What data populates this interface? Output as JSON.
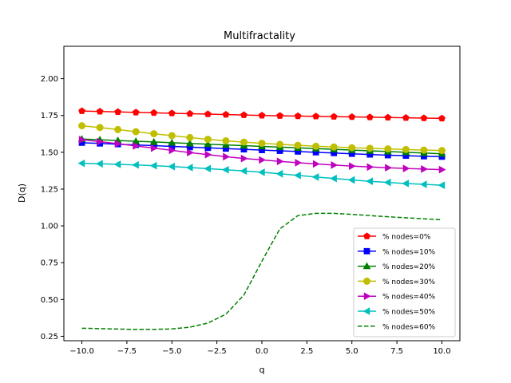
{
  "chart_data": {
    "type": "line",
    "title": "Multifractality",
    "xlabel": "q",
    "ylabel": "D(q)",
    "xlim": [
      -11,
      11
    ],
    "ylim": [
      0.22,
      2.22
    ],
    "x_ticks": [
      -10.0,
      -7.5,
      -5.0,
      -2.5,
      0.0,
      2.5,
      5.0,
      7.5,
      10.0
    ],
    "x_tick_labels": [
      "−10.0",
      "−7.5",
      "−5.0",
      "−2.5",
      "0.0",
      "2.5",
      "5.0",
      "7.5",
      "10.0"
    ],
    "y_ticks": [
      0.25,
      0.5,
      0.75,
      1.0,
      1.25,
      1.5,
      1.75,
      2.0
    ],
    "y_tick_labels": [
      "0.25",
      "0.50",
      "0.75",
      "1.00",
      "1.25",
      "1.50",
      "1.75",
      "2.00"
    ],
    "grid": false,
    "legend_position": "lower-right",
    "x": [
      -10,
      -9,
      -8,
      -7,
      -6,
      -5,
      -4,
      -3,
      -2,
      -1,
      0,
      1,
      2,
      3,
      4,
      5,
      6,
      7,
      8,
      9,
      10
    ],
    "series": [
      {
        "name": "% nodes=0%",
        "color": "#ff0000",
        "marker": "pentagon",
        "linestyle": "solid",
        "values": [
          1.78,
          1.777,
          1.774,
          1.771,
          1.768,
          1.765,
          1.762,
          1.759,
          1.756,
          1.753,
          1.75,
          1.748,
          1.746,
          1.744,
          1.742,
          1.74,
          1.738,
          1.736,
          1.734,
          1.732,
          1.73
        ]
      },
      {
        "name": "% nodes=10%",
        "color": "#0000ff",
        "marker": "square",
        "linestyle": "solid",
        "values": [
          1.565,
          1.56,
          1.555,
          1.55,
          1.545,
          1.54,
          1.535,
          1.53,
          1.525,
          1.52,
          1.515,
          1.51,
          1.505,
          1.5,
          1.495,
          1.49,
          1.485,
          1.48,
          1.477,
          1.473,
          1.47
        ]
      },
      {
        "name": "% nodes=20%",
        "color": "#008000",
        "marker": "triangle-up",
        "linestyle": "solid",
        "values": [
          1.59,
          1.585,
          1.58,
          1.575,
          1.57,
          1.565,
          1.56,
          1.555,
          1.55,
          1.545,
          1.54,
          1.535,
          1.53,
          1.525,
          1.52,
          1.515,
          1.51,
          1.505,
          1.5,
          1.495,
          1.49
        ]
      },
      {
        "name": "% nodes=30%",
        "color": "#bfbf00",
        "marker": "circle",
        "linestyle": "solid",
        "values": [
          1.68,
          1.668,
          1.654,
          1.64,
          1.626,
          1.613,
          1.6,
          1.588,
          1.578,
          1.569,
          1.561,
          1.554,
          1.547,
          1.541,
          1.536,
          1.531,
          1.527,
          1.523,
          1.519,
          1.515,
          1.512
        ]
      },
      {
        "name": "% nodes=40%",
        "color": "#bf00bf",
        "marker": "triangle-right",
        "linestyle": "solid",
        "values": [
          1.585,
          1.572,
          1.558,
          1.543,
          1.528,
          1.513,
          1.498,
          1.484,
          1.47,
          1.458,
          1.448,
          1.438,
          1.429,
          1.421,
          1.413,
          1.406,
          1.4,
          1.395,
          1.39,
          1.386,
          1.382
        ]
      },
      {
        "name": "% nodes=50%",
        "color": "#00bfbf",
        "marker": "triangle-left",
        "linestyle": "solid",
        "values": [
          1.425,
          1.422,
          1.418,
          1.414,
          1.409,
          1.403,
          1.396,
          1.389,
          1.381,
          1.373,
          1.364,
          1.354,
          1.343,
          1.332,
          1.322,
          1.312,
          1.303,
          1.295,
          1.288,
          1.282,
          1.276
        ]
      },
      {
        "name": "% nodes=60%",
        "color": "#008000",
        "marker": "none",
        "linestyle": "dashed",
        "values": [
          0.305,
          0.302,
          0.299,
          0.297,
          0.297,
          0.3,
          0.312,
          0.34,
          0.4,
          0.53,
          0.76,
          0.98,
          1.07,
          1.085,
          1.085,
          1.078,
          1.07,
          1.062,
          1.055,
          1.048,
          1.042
        ]
      }
    ]
  }
}
